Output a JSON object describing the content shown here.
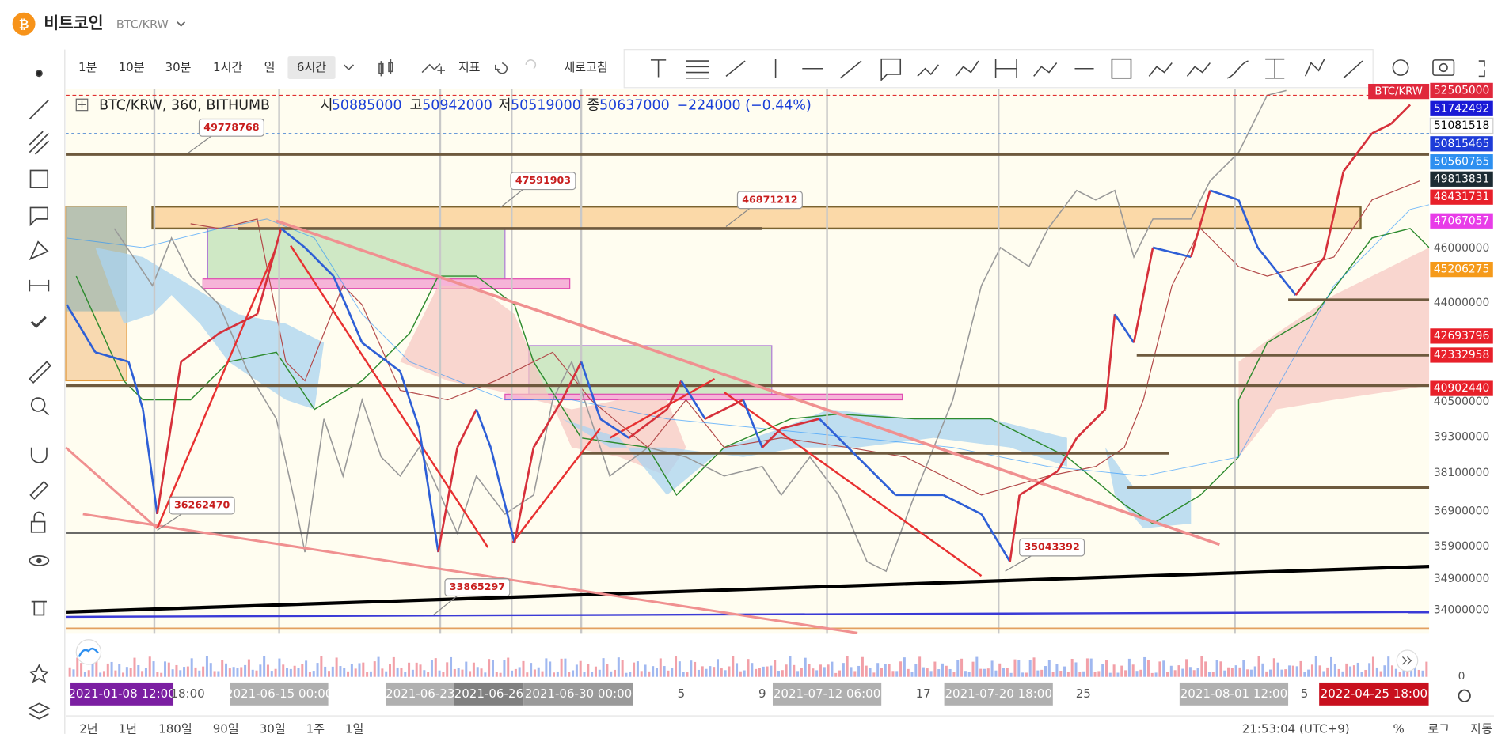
{
  "header": {
    "title": "비트코인",
    "symbol": "BTC/KRW"
  },
  "toolbar": {
    "intervals": [
      "1분",
      "10분",
      "30분",
      "1시간",
      "일",
      "6시간"
    ],
    "indicator": "지표",
    "refresh": "새로고침"
  },
  "legend": {
    "symbol": "BTC/KRW, 360, BITHUMB",
    "open_label": "시",
    "open": "50885000",
    "high_label": "고",
    "high": "50942000",
    "low_label": "저",
    "low": "50519000",
    "close_label": "종",
    "close": "50637000",
    "change": "−224000 (−0.44%)"
  },
  "overlay_label": "BTC/KRW",
  "price_axis": [
    {
      "label": "52505000",
      "bg": "#e0283c"
    },
    {
      "label": "51742492",
      "bg": "#1a1ad6"
    },
    {
      "label": "51081518",
      "bg": "#ffffff"
    },
    {
      "label": "50815465",
      "bg": "#1e3cd8"
    },
    {
      "label": "50560765",
      "bg": "#2d8ff0"
    },
    {
      "label": "49813831",
      "bg": "#1c2b33"
    },
    {
      "label": "48431731",
      "bg": "#e8202a"
    },
    {
      "label": "47067057",
      "bg": "#e83ce8"
    },
    {
      "label": "46000000"
    },
    {
      "label": "45206275",
      "bg": "#f59a1a"
    },
    {
      "label": "44000000"
    },
    {
      "label": "42693796",
      "bg": "#e8202a"
    },
    {
      "label": "42332958",
      "bg": "#e8202a"
    },
    {
      "label": "40902440",
      "bg": "#e8202a"
    },
    {
      "label": "40500000"
    },
    {
      "label": "39300000"
    },
    {
      "label": "38100000"
    },
    {
      "label": "36900000"
    },
    {
      "label": "35900000"
    },
    {
      "label": "34900000"
    },
    {
      "label": "34000000"
    },
    {
      "label": "0"
    }
  ],
  "annotations": [
    "49778768",
    "47591903",
    "46871212",
    "36262470",
    "33865297",
    "35043392"
  ],
  "time_axis": [
    {
      "label": "2021-01-08 12:00",
      "bg": "#7b1fa2"
    },
    {
      "label": "18:00"
    },
    {
      "label": "2021-06-15 00:00",
      "bg": "#b0b0b0"
    },
    {
      "label": "2021-06-23",
      "bg": "#b0b0b0"
    },
    {
      "label": "2021-06-26",
      "bg": "#808080"
    },
    {
      "label": "2021-06-30 00:00",
      "bg": "#9a9a9a"
    },
    {
      "label": "5"
    },
    {
      "label": "9"
    },
    {
      "label": "2021-07-12 06:00",
      "bg": "#b0b0b0"
    },
    {
      "label": "17"
    },
    {
      "label": "2021-07-20 18:00",
      "bg": "#b0b0b0"
    },
    {
      "label": "25"
    },
    {
      "label": "2021-08-01 12:00",
      "bg": "#b0b0b0"
    },
    {
      "label": "5"
    },
    {
      "label": "2022-04-25 18:00",
      "bg": "#c8101e"
    }
  ],
  "range_buttons": [
    "2년",
    "1년",
    "180일",
    "90일",
    "30일",
    "1주",
    "1일"
  ],
  "status": {
    "time": "21:53:04 (UTC+9)",
    "percent": "%",
    "log": "로그",
    "auto": "자동"
  }
}
